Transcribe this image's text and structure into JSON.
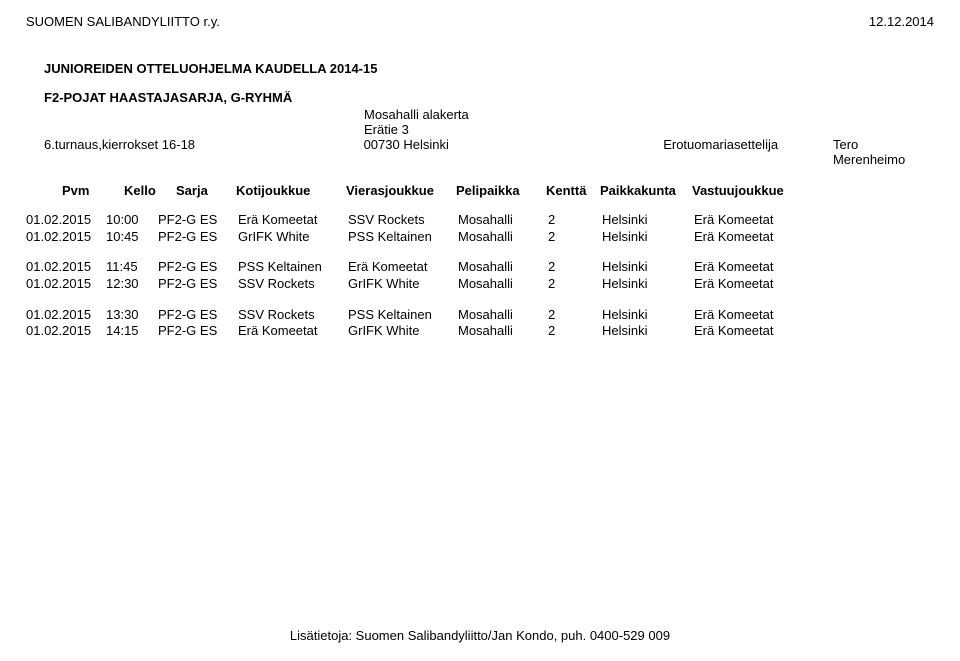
{
  "header": {
    "org": "SUOMEN SALIBANDYLIITTO r.y.",
    "date": "12.12.2014"
  },
  "titles": {
    "schedule": "JUNIOREIDEN OTTELUOHJELMA KAUDELLA 2014-15",
    "series": "F2-POJAT HAASTAJASARJA, G-RYHMÄ"
  },
  "venue": {
    "line1": "Mosahalli alakerta",
    "line2": "Erätie 3",
    "turnaus_label": "6.turnaus,kierrokset 16-18",
    "city": "00730 Helsinki",
    "role": "Erotuomariasettelija",
    "referee": "Tero Merenheimo"
  },
  "columns": {
    "pvm": "Pvm",
    "kello": "Kello",
    "sarja": "Sarja",
    "koti": "Kotijoukkue",
    "vieras": "Vierasjoukkue",
    "peli": "Pelipaikka",
    "kentta": "Kenttä",
    "paikka": "Paikkakunta",
    "vastuu": "Vastuujoukkue"
  },
  "groups": [
    {
      "rows": [
        {
          "pvm": "01.02.2015",
          "kello": "10:00",
          "sarja": "PF2-G ES",
          "koti": "Erä Komeetat",
          "vieras": "SSV Rockets",
          "peli": "Mosahalli",
          "kentta": "2",
          "paikka": "Helsinki",
          "vastuu": "Erä Komeetat"
        },
        {
          "pvm": "01.02.2015",
          "kello": "10:45",
          "sarja": "PF2-G ES",
          "koti": "GrIFK White",
          "vieras": "PSS Keltainen",
          "peli": "Mosahalli",
          "kentta": "2",
          "paikka": "Helsinki",
          "vastuu": "Erä Komeetat"
        }
      ]
    },
    {
      "rows": [
        {
          "pvm": "01.02.2015",
          "kello": "11:45",
          "sarja": "PF2-G ES",
          "koti": "PSS Keltainen",
          "vieras": "Erä Komeetat",
          "peli": "Mosahalli",
          "kentta": "2",
          "paikka": "Helsinki",
          "vastuu": "Erä Komeetat"
        },
        {
          "pvm": "01.02.2015",
          "kello": "12:30",
          "sarja": "PF2-G ES",
          "koti": "SSV Rockets",
          "vieras": "GrIFK White",
          "peli": "Mosahalli",
          "kentta": "2",
          "paikka": "Helsinki",
          "vastuu": "Erä Komeetat"
        }
      ]
    },
    {
      "rows": [
        {
          "pvm": "01.02.2015",
          "kello": "13:30",
          "sarja": "PF2-G ES",
          "koti": "SSV Rockets",
          "vieras": "PSS Keltainen",
          "peli": "Mosahalli",
          "kentta": "2",
          "paikka": "Helsinki",
          "vastuu": "Erä Komeetat"
        },
        {
          "pvm": "01.02.2015",
          "kello": "14:15",
          "sarja": "PF2-G ES",
          "koti": "Erä Komeetat",
          "vieras": "GrIFK White",
          "peli": "Mosahalli",
          "kentta": "2",
          "paikka": "Helsinki",
          "vastuu": "Erä Komeetat"
        }
      ]
    }
  ],
  "footer": {
    "text": "Lisätietoja: Suomen Salibandyliitto/Jan Kondo, puh. 0400-529 009"
  }
}
